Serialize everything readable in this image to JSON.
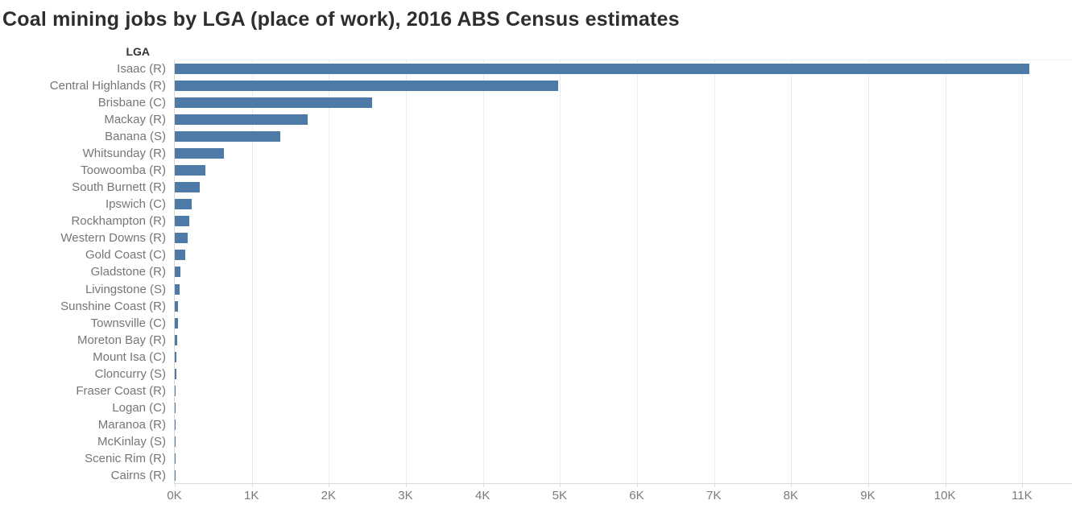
{
  "colors": {
    "bar": "#4e7aa8",
    "gridline": "#ececec",
    "axis_line": "#d9d9d9",
    "title_text": "#2e2e2e",
    "label_text": "#767676",
    "tick_text": "#7b7b7b"
  },
  "chart_data": {
    "type": "bar",
    "orientation": "horizontal",
    "title": "Coal mining jobs by LGA (place of work), 2016 ABS Census estimates",
    "ylabel_header": "LGA",
    "xlabel": "",
    "legend": "none",
    "grid": "vertical-only",
    "sort": "descending",
    "xlim": [
      0,
      11650
    ],
    "x_tick_values": [
      0,
      1000,
      2000,
      3000,
      4000,
      5000,
      6000,
      7000,
      8000,
      9000,
      10000,
      11000
    ],
    "x_tick_labels": [
      "0K",
      "1K",
      "2K",
      "3K",
      "4K",
      "5K",
      "6K",
      "7K",
      "8K",
      "9K",
      "10K",
      "11K"
    ],
    "categories": [
      "Isaac (R)",
      "Central Highlands (R)",
      "Brisbane (C)",
      "Mackay (R)",
      "Banana (S)",
      "Whitsunday (R)",
      "Toowoomba (R)",
      "South Burnett (R)",
      "Ipswich (C)",
      "Rockhampton (R)",
      "Western Downs (R)",
      "Gold Coast (C)",
      "Gladstone (R)",
      "Livingstone (S)",
      "Sunshine Coast (R)",
      "Townsville (C)",
      "Moreton Bay (R)",
      "Mount Isa (C)",
      "Cloncurry (S)",
      "Fraser Coast (R)",
      "Logan (C)",
      "Maranoa (R)",
      "McKinlay (S)",
      "Scenic Rim (R)",
      "Cairns (R)"
    ],
    "values": [
      11100,
      4980,
      2570,
      1730,
      1370,
      640,
      400,
      330,
      225,
      190,
      175,
      145,
      75,
      70,
      52,
      43,
      40,
      30,
      21,
      19,
      10,
      8,
      7,
      5,
      4
    ]
  }
}
